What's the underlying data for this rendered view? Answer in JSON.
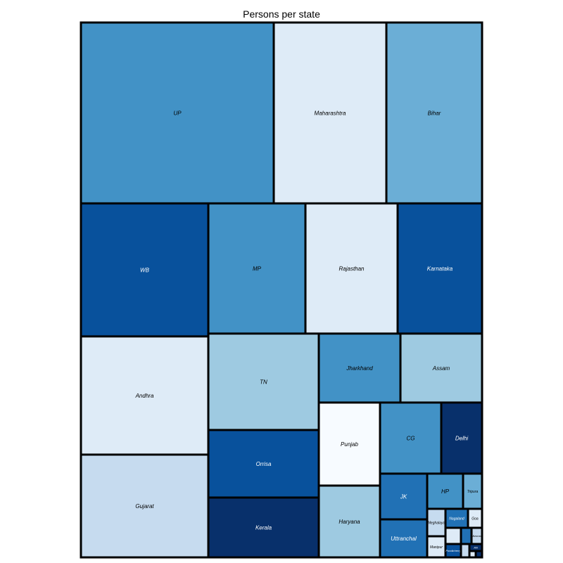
{
  "chart_data": {
    "type": "treemap",
    "title": "Persons per state",
    "metric": "Persons",
    "colors": {
      "c1": "#f7fbff",
      "c2": "#deebf7",
      "c3": "#c6dbef",
      "c4": "#9ecae1",
      "c5": "#6baed6",
      "c6": "#4292c6",
      "c7": "#2171b5",
      "c8": "#08519c",
      "c9": "#08306b"
    },
    "tiles": [
      {
        "label": "UP",
        "color": "c6",
        "value": 166
      },
      {
        "label": "Maharashtra",
        "color": "c2",
        "value": 97
      },
      {
        "label": "Bihar",
        "color": "c5",
        "value": 83
      },
      {
        "label": "WB",
        "color": "c8",
        "value": 80
      },
      {
        "label": "MP",
        "color": "c6",
        "value": 60
      },
      {
        "label": "Rajasthan",
        "color": "c2",
        "value": 56
      },
      {
        "label": "Karnataka",
        "color": "c8",
        "value": 53
      },
      {
        "label": "Andhra",
        "color": "c2",
        "value": 76
      },
      {
        "label": "TN",
        "color": "c4",
        "value": 62
      },
      {
        "label": "Gujarat",
        "color": "c3",
        "value": 51
      },
      {
        "label": "Orrisa",
        "color": "c8",
        "value": 37
      },
      {
        "label": "Kerala",
        "color": "c9",
        "value": 32
      },
      {
        "label": "Jharkhand",
        "color": "c6",
        "value": 27
      },
      {
        "label": "Assam",
        "color": "c4",
        "value": 27
      },
      {
        "label": "Punjab",
        "color": "c1",
        "value": 24
      },
      {
        "label": "Haryana",
        "color": "c4",
        "value": 21
      },
      {
        "label": "CG",
        "color": "c6",
        "value": 21
      },
      {
        "label": "Delhi",
        "color": "c9",
        "value": 14
      },
      {
        "label": "JK",
        "color": "c7",
        "value": 10
      },
      {
        "label": "Uttranchal",
        "color": "c7",
        "value": 8.5
      },
      {
        "label": "HP",
        "color": "c6",
        "value": 6
      },
      {
        "label": "Tripura",
        "color": "c5",
        "value": 3.2
      },
      {
        "label": "Meghalaya",
        "color": "c3",
        "value": 2.3
      },
      {
        "label": "Manipur",
        "color": "c2",
        "value": 2.2
      },
      {
        "label": "Nagaland",
        "color": "c7",
        "value": 2.0
      },
      {
        "label": "Goa",
        "color": "c2",
        "value": 1.3
      },
      {
        "label": "",
        "color": "c2",
        "value": 1.0
      },
      {
        "label": "",
        "color": "c7",
        "value": 0.9
      },
      {
        "label": "Mizoram",
        "color": "c3",
        "value": 0.9
      },
      {
        "label": "Pondicherry",
        "color": "c8",
        "value": 1.0
      },
      {
        "label": "",
        "color": "c3",
        "value": 0.4
      },
      {
        "label": "AN",
        "color": "c9",
        "value": 0.36
      },
      {
        "label": "",
        "color": "c2",
        "value": 0.2
      },
      {
        "label": "",
        "color": "c9",
        "value": 0.15
      }
    ]
  }
}
